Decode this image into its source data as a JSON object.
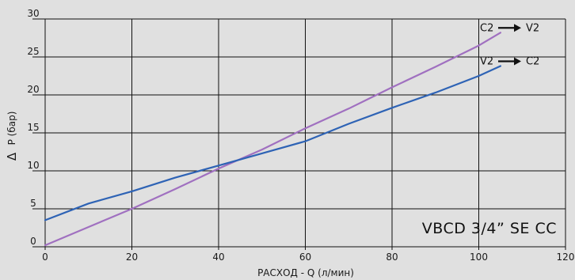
{
  "chart_data": {
    "type": "line",
    "xlabel": "РАСХОД - Q (л/мин)",
    "ylabel": "P (бар)",
    "ylabel_symbol": "Δ",
    "xlim": [
      0,
      120
    ],
    "ylim": [
      0,
      30
    ],
    "xticks": [
      "0",
      "20",
      "40",
      "60",
      "80",
      "100",
      "120"
    ],
    "yticks": [
      "0",
      "5",
      "10",
      "15",
      "20",
      "25",
      "30"
    ],
    "grid": true,
    "model_label": "VBCD 3/4” SE CC",
    "series": [
      {
        "name": "C2 → V2",
        "color": "#a070c0",
        "x": [
          0,
          10,
          20,
          30,
          40,
          50,
          60,
          70,
          80,
          90,
          100,
          105
        ],
        "y": [
          0.2,
          2.6,
          5.0,
          7.6,
          10.3,
          12.8,
          15.6,
          18.2,
          21.0,
          23.7,
          26.5,
          28.2
        ]
      },
      {
        "name": "V2 → C2",
        "color": "#2e63b5",
        "x": [
          0,
          10,
          20,
          30,
          40,
          50,
          60,
          70,
          80,
          90,
          100,
          105
        ],
        "y": [
          3.5,
          5.7,
          7.3,
          9.1,
          10.7,
          12.3,
          13.9,
          16.2,
          18.3,
          20.3,
          22.5,
          23.8
        ]
      }
    ]
  }
}
